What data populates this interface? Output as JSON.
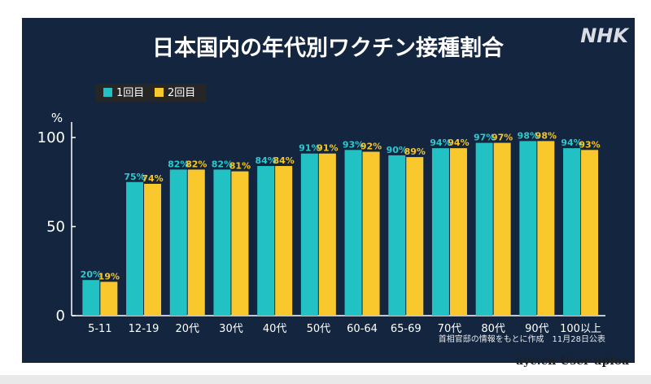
{
  "chart_data": {
    "type": "bar",
    "title": "日本国内の年代別ワクチン接種割合",
    "ylabel": "%",
    "ylim": [
      0,
      100
    ],
    "yticks": [
      0,
      50,
      100
    ],
    "categories": [
      "5-11",
      "12-19",
      "20代",
      "30代",
      "40代",
      "50代",
      "60-64",
      "65-69",
      "70代",
      "80代",
      "90代",
      "100以上"
    ],
    "series": [
      {
        "name": "1回目",
        "color": "#21c1c4",
        "label_color": "#2cc9cf",
        "values": [
          20,
          75,
          82,
          82,
          84,
          91,
          93,
          90,
          94,
          97,
          98,
          94
        ]
      },
      {
        "name": "2回目",
        "color": "#f9c82d",
        "label_color": "#f3c52b",
        "values": [
          19,
          74,
          82,
          81,
          84,
          91,
          92,
          89,
          94,
          97,
          98,
          93
        ]
      }
    ],
    "legend": "top-left",
    "grid": false,
    "value_suffix": "%"
  },
  "brand": "NHK",
  "source_note": "首相官邸の情報をもとに作成　11月28日公表",
  "watermark": "ayc.cn User uploa"
}
